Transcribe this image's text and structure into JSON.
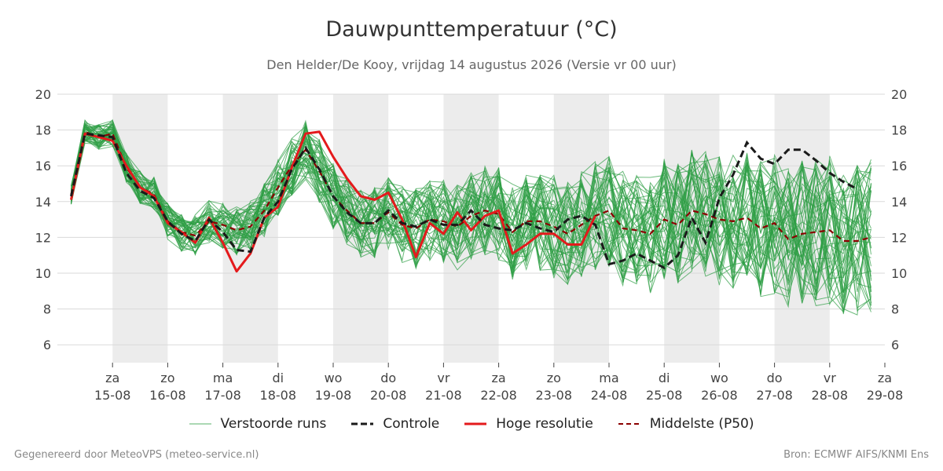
{
  "title": "Dauwpunttemperatuur (°C)",
  "subtitle": "Den Helder/De Kooy, vrijdag 14 augustus 2026 (Versie vr 00 uur)",
  "footer_left": "Gegenereerd door MeteoVPS (meteo-service.nl)",
  "footer_right": "Bron: ECMWF AIFS/KNMI Ens",
  "legend": [
    {
      "label": "Verstoorde runs",
      "color": "#2e9e44",
      "style": "thin-solid"
    },
    {
      "label": "Controle",
      "color": "#1a1a1a",
      "style": "dashed"
    },
    {
      "label": "Hoge resolutie",
      "color": "#e41a1c",
      "style": "thick-solid"
    },
    {
      "label": "Middelste (P50)",
      "color": "#8b0000",
      "style": "dashed"
    }
  ],
  "chart_data": {
    "type": "line",
    "title": "Dauwpunttemperatuur (°C)",
    "ylim": [
      5,
      20
    ],
    "yticks": [
      6,
      8,
      10,
      12,
      14,
      16,
      18,
      20
    ],
    "xlim_days": [
      "2026-08-14",
      "2026-08-29"
    ],
    "x_ticks": [
      {
        "day": "za",
        "date": "15-08"
      },
      {
        "day": "zo",
        "date": "16-08"
      },
      {
        "day": "ma",
        "date": "17-08"
      },
      {
        "day": "di",
        "date": "18-08"
      },
      {
        "day": "wo",
        "date": "19-08"
      },
      {
        "day": "do",
        "date": "20-08"
      },
      {
        "day": "vr",
        "date": "21-08"
      },
      {
        "day": "za",
        "date": "22-08"
      },
      {
        "day": "zo",
        "date": "23-08"
      },
      {
        "day": "ma",
        "date": "24-08"
      },
      {
        "day": "di",
        "date": "25-08"
      },
      {
        "day": "wo",
        "date": "26-08"
      },
      {
        "day": "do",
        "date": "27-08"
      },
      {
        "day": "vr",
        "date": "28-08"
      },
      {
        "day": "za",
        "date": "29-08"
      }
    ],
    "shaded_bands": [
      [
        "2026-08-15",
        "2026-08-16"
      ],
      [
        "2026-08-17",
        "2026-08-18"
      ],
      [
        "2026-08-19",
        "2026-08-20"
      ],
      [
        "2026-08-21",
        "2026-08-22"
      ],
      [
        "2026-08-23",
        "2026-08-24"
      ],
      [
        "2026-08-25",
        "2026-08-26"
      ],
      [
        "2026-08-27",
        "2026-08-28"
      ]
    ],
    "grid": true,
    "colors": {
      "ensemble": "#2e9e44",
      "control": "#1a1a1a",
      "hires": "#e41a1c",
      "median": "#8b0000",
      "band": "#ececec",
      "grid": "#d9d9d9"
    },
    "series": [
      {
        "name": "Controle",
        "x_start": "2026-08-14 06:00",
        "step_hours": 6,
        "values": [
          14.3,
          17.8,
          17.7,
          17.6,
          15.6,
          14.6,
          14.2,
          12.9,
          12.2,
          11.8,
          13.0,
          12.3,
          11.3,
          11.2,
          13.1,
          14.0,
          15.8,
          17.0,
          15.8,
          14.3,
          13.4,
          12.8,
          12.8,
          13.5,
          12.8,
          12.6,
          13.0,
          12.7,
          12.7,
          13.5,
          12.7,
          12.5,
          12.4,
          12.8,
          12.5,
          12.3,
          13.0,
          13.2,
          12.7,
          10.5,
          10.7,
          11.1,
          10.7,
          10.3,
          11.0,
          13.1,
          11.7,
          14.2,
          15.5,
          17.3,
          16.4,
          16.1,
          16.9,
          16.9,
          16.3,
          15.6,
          15.1,
          14.7
        ]
      },
      {
        "name": "Hoge resolutie",
        "x_start": "2026-08-14 06:00",
        "step_hours": 6,
        "values": [
          14.1,
          17.8,
          17.6,
          17.4,
          16.0,
          14.8,
          14.3,
          12.8,
          12.3,
          11.7,
          13.1,
          11.7,
          10.1,
          11.1,
          13.1,
          13.7,
          15.9,
          17.8,
          17.9,
          16.5,
          15.3,
          14.3,
          14.1,
          14.5,
          13.0,
          10.9,
          12.8,
          12.2,
          13.4,
          12.4,
          13.2,
          13.5,
          11.1,
          11.6,
          12.2,
          12.2,
          11.6,
          11.6,
          13.2
        ]
      },
      {
        "name": "Middelste (P50)",
        "x_start": "2026-08-14 06:00",
        "step_hours": 6,
        "values": [
          14.4,
          17.9,
          17.6,
          17.8,
          15.9,
          14.8,
          14.4,
          12.9,
          12.3,
          12.1,
          12.9,
          12.7,
          12.4,
          12.6,
          13.5,
          14.8,
          16.0,
          16.9,
          15.7,
          14.3,
          13.5,
          12.8,
          12.8,
          13.4,
          12.7,
          12.5,
          13.0,
          12.9,
          12.6,
          13.2,
          13.5,
          13.3,
          12.3,
          12.9,
          12.9,
          12.6,
          12.2,
          12.7,
          13.2,
          13.5,
          12.5,
          12.4,
          12.2,
          13.0,
          12.7,
          13.5,
          13.3,
          13.0,
          12.9,
          13.1,
          12.5,
          12.8,
          11.9,
          12.2,
          12.3,
          12.4,
          11.8,
          11.8,
          12.0
        ]
      },
      {
        "name": "Verstoorde runs",
        "note_count": 50,
        "envelope_mean": [
          14.4,
          17.9,
          17.6,
          17.8,
          15.9,
          14.8,
          14.4,
          12.9,
          12.3,
          12.1,
          12.9,
          12.7,
          12.4,
          12.6,
          13.5,
          14.8,
          16.0,
          16.9,
          15.7,
          14.3,
          13.5,
          12.8,
          12.8,
          13.4,
          12.7,
          12.5,
          13.0,
          12.9,
          12.6,
          13.2,
          13.5,
          13.3,
          12.3,
          12.9,
          12.9,
          12.6,
          12.2,
          12.7,
          13.2,
          13.5,
          12.5,
          12.4,
          12.2,
          13.0,
          12.7,
          13.5,
          13.3,
          13.0,
          12.9,
          13.1,
          12.5,
          12.8,
          11.9,
          12.2,
          12.3,
          12.4,
          11.8,
          11.8,
          12.0
        ]
      }
    ]
  }
}
